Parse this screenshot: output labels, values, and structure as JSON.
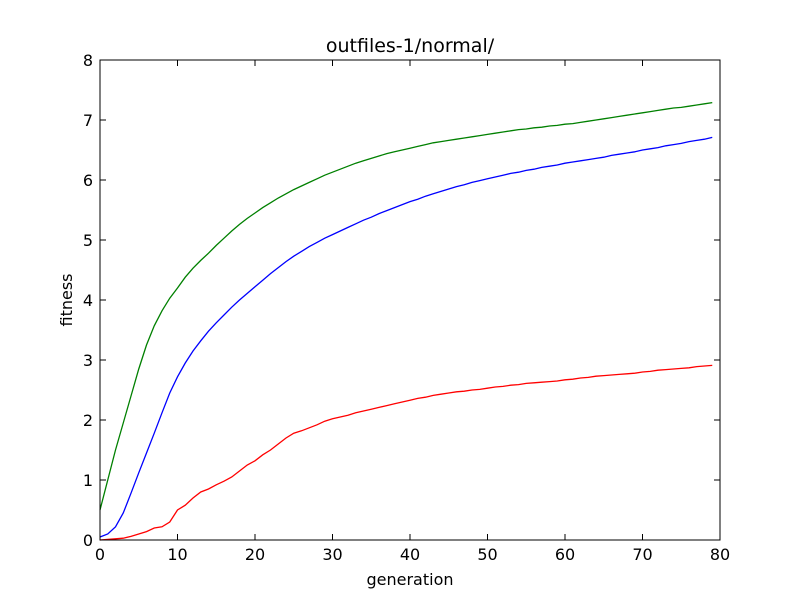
{
  "chart_data": {
    "type": "line",
    "title": "outfiles-1/normal/",
    "xlabel": "generation",
    "ylabel": "fitness",
    "xlim": [
      0,
      80
    ],
    "ylim": [
      0,
      8
    ],
    "xticks": [
      0,
      10,
      20,
      30,
      40,
      50,
      60,
      70,
      80
    ],
    "yticks": [
      0,
      1,
      2,
      3,
      4,
      5,
      6,
      7,
      8
    ],
    "grid": false,
    "x": [
      0,
      1,
      2,
      3,
      4,
      5,
      6,
      7,
      8,
      9,
      10,
      11,
      12,
      13,
      14,
      15,
      16,
      17,
      18,
      19,
      20,
      21,
      22,
      23,
      24,
      25,
      26,
      27,
      28,
      29,
      30,
      31,
      32,
      33,
      34,
      35,
      36,
      37,
      38,
      39,
      40,
      41,
      42,
      43,
      44,
      45,
      46,
      47,
      48,
      49,
      50,
      51,
      52,
      53,
      54,
      55,
      56,
      57,
      58,
      59,
      60,
      61,
      62,
      63,
      64,
      65,
      66,
      67,
      68,
      69,
      70,
      71,
      72,
      73,
      74,
      75,
      76,
      77,
      78,
      79
    ],
    "series": [
      {
        "color": "#008000",
        "values": [
          0.5,
          1.0,
          1.5,
          1.95,
          2.4,
          2.85,
          3.25,
          3.57,
          3.82,
          4.03,
          4.2,
          4.38,
          4.53,
          4.66,
          4.78,
          4.91,
          5.03,
          5.15,
          5.26,
          5.36,
          5.45,
          5.54,
          5.62,
          5.7,
          5.77,
          5.84,
          5.9,
          5.96,
          6.02,
          6.08,
          6.13,
          6.18,
          6.23,
          6.28,
          6.32,
          6.36,
          6.4,
          6.44,
          6.47,
          6.5,
          6.53,
          6.56,
          6.59,
          6.62,
          6.64,
          6.66,
          6.68,
          6.7,
          6.72,
          6.74,
          6.76,
          6.78,
          6.8,
          6.82,
          6.84,
          6.85,
          6.87,
          6.88,
          6.9,
          6.91,
          6.93,
          6.94,
          6.96,
          6.98,
          7.0,
          7.02,
          7.04,
          7.06,
          7.08,
          7.1,
          7.12,
          7.14,
          7.16,
          7.18,
          7.2,
          7.21,
          7.23,
          7.25,
          7.27,
          7.29
        ]
      },
      {
        "color": "#0000ff",
        "values": [
          0.05,
          0.1,
          0.22,
          0.45,
          0.78,
          1.12,
          1.45,
          1.78,
          2.12,
          2.45,
          2.72,
          2.95,
          3.15,
          3.32,
          3.48,
          3.62,
          3.75,
          3.88,
          4.0,
          4.11,
          4.22,
          4.33,
          4.44,
          4.54,
          4.64,
          4.73,
          4.81,
          4.89,
          4.96,
          5.03,
          5.09,
          5.15,
          5.21,
          5.27,
          5.33,
          5.38,
          5.44,
          5.49,
          5.54,
          5.59,
          5.64,
          5.68,
          5.73,
          5.77,
          5.81,
          5.85,
          5.89,
          5.92,
          5.96,
          5.99,
          6.02,
          6.05,
          6.08,
          6.11,
          6.13,
          6.16,
          6.18,
          6.21,
          6.23,
          6.25,
          6.28,
          6.3,
          6.32,
          6.34,
          6.36,
          6.38,
          6.41,
          6.43,
          6.45,
          6.47,
          6.5,
          6.52,
          6.54,
          6.57,
          6.59,
          6.61,
          6.64,
          6.66,
          6.68,
          6.71
        ]
      },
      {
        "color": "#ff0000",
        "values": [
          0.0,
          0.01,
          0.02,
          0.03,
          0.06,
          0.1,
          0.14,
          0.2,
          0.22,
          0.3,
          0.5,
          0.58,
          0.7,
          0.8,
          0.85,
          0.92,
          0.98,
          1.05,
          1.15,
          1.25,
          1.32,
          1.42,
          1.5,
          1.6,
          1.7,
          1.78,
          1.82,
          1.87,
          1.92,
          1.98,
          2.02,
          2.05,
          2.08,
          2.12,
          2.15,
          2.18,
          2.21,
          2.24,
          2.27,
          2.3,
          2.33,
          2.36,
          2.38,
          2.41,
          2.43,
          2.45,
          2.47,
          2.48,
          2.5,
          2.51,
          2.53,
          2.55,
          2.56,
          2.58,
          2.59,
          2.61,
          2.62,
          2.63,
          2.64,
          2.65,
          2.67,
          2.68,
          2.7,
          2.71,
          2.73,
          2.74,
          2.75,
          2.76,
          2.77,
          2.78,
          2.8,
          2.81,
          2.83,
          2.84,
          2.85,
          2.86,
          2.87,
          2.89,
          2.9,
          2.91
        ]
      }
    ]
  }
}
